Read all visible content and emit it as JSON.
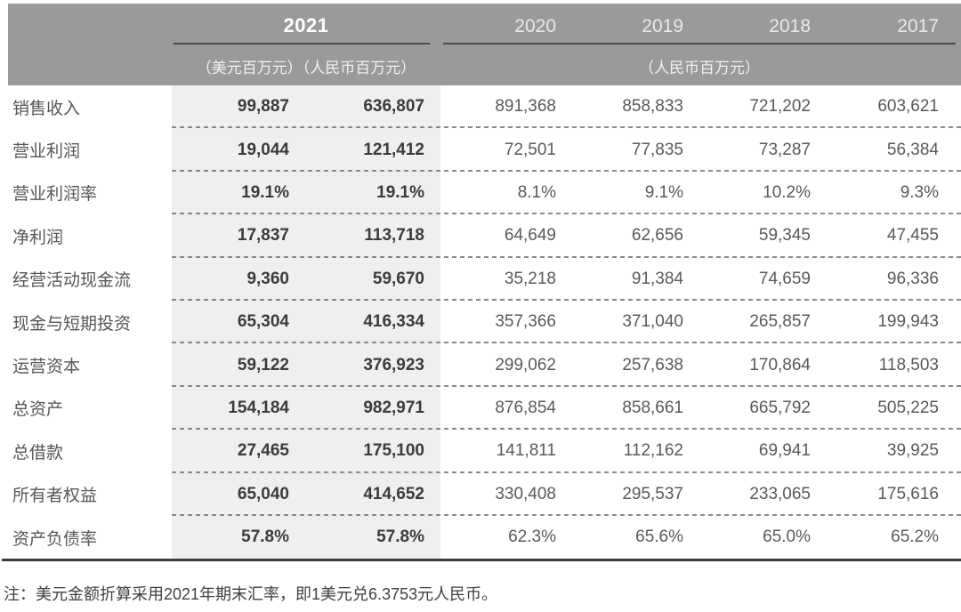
{
  "header": {
    "year_highlight": "2021",
    "years": [
      "2020",
      "2019",
      "2018",
      "2017"
    ],
    "unit_usd_cny": "（美元百万元）（人民币百万元）",
    "unit_cny": "（人民币百万元）"
  },
  "table": {
    "rows": [
      {
        "label": "销售收入",
        "usd": "99,887",
        "rmb": "636,807",
        "y2020": "891,368",
        "y2019": "858,833",
        "y2018": "721,202",
        "y2017": "603,621"
      },
      {
        "label": "营业利润",
        "usd": "19,044",
        "rmb": "121,412",
        "y2020": "72,501",
        "y2019": "77,835",
        "y2018": "73,287",
        "y2017": "56,384"
      },
      {
        "label": "营业利润率",
        "usd": "19.1%",
        "rmb": "19.1%",
        "y2020": "8.1%",
        "y2019": "9.1%",
        "y2018": "10.2%",
        "y2017": "9.3%"
      },
      {
        "label": "净利润",
        "usd": "17,837",
        "rmb": "113,718",
        "y2020": "64,649",
        "y2019": "62,656",
        "y2018": "59,345",
        "y2017": "47,455"
      },
      {
        "label": "经营活动现金流",
        "usd": "9,360",
        "rmb": "59,670",
        "y2020": "35,218",
        "y2019": "91,384",
        "y2018": "74,659",
        "y2017": "96,336"
      },
      {
        "label": "现金与短期投资",
        "usd": "65,304",
        "rmb": "416,334",
        "y2020": "357,366",
        "y2019": "371,040",
        "y2018": "265,857",
        "y2017": "199,943"
      },
      {
        "label": "运营资本",
        "usd": "59,122",
        "rmb": "376,923",
        "y2020": "299,062",
        "y2019": "257,638",
        "y2018": "170,864",
        "y2017": "118,503"
      },
      {
        "label": "总资产",
        "usd": "154,184",
        "rmb": "982,971",
        "y2020": "876,854",
        "y2019": "858,661",
        "y2018": "665,792",
        "y2017": "505,225"
      },
      {
        "label": "总借款",
        "usd": "27,465",
        "rmb": "175,100",
        "y2020": "141,811",
        "y2019": "112,162",
        "y2018": "69,941",
        "y2017": "39,925"
      },
      {
        "label": "所有者权益",
        "usd": "65,040",
        "rmb": "414,652",
        "y2020": "330,408",
        "y2019": "295,537",
        "y2018": "233,065",
        "y2017": "175,616"
      },
      {
        "label": "资产负债率",
        "usd": "57.8%",
        "rmb": "57.8%",
        "y2020": "62.3%",
        "y2019": "65.6%",
        "y2018": "65.0%",
        "y2017": "65.2%"
      }
    ]
  },
  "note": "注：美元金额折算采用2021年期末汇率，即1美元兑6.3753元人民币。",
  "colors": {
    "header_gray": "#9a9a9a",
    "highlight_band": "#efefef",
    "header_text": "#ffffff",
    "value_text": "#58595b",
    "bold_value_text": "#3b3b3c",
    "dashed_rule": "#8a8a8a",
    "bottom_rule": "#3d3d3d"
  }
}
